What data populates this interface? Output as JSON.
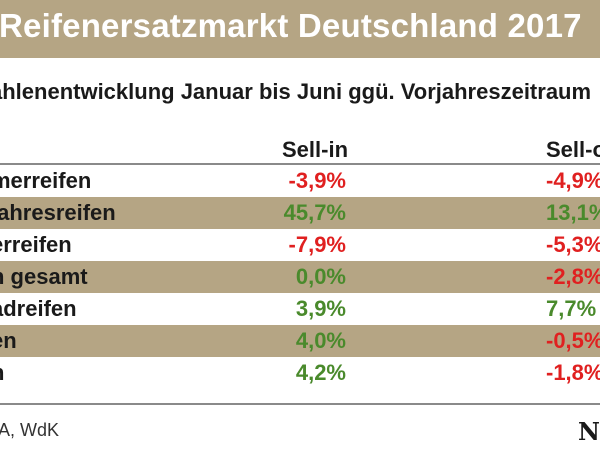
{
  "title": "Reifenersatzmarkt Deutschland 2017",
  "subtitle": "ahlenentwicklung Januar bis Juni ggü. Vorjahreszeitraum",
  "columns": {
    "sellin": "Sell-in",
    "sellout": "Sell-out"
  },
  "rows": [
    {
      "label": "merreifen",
      "sellin": "-3,9%",
      "sellout": "-4,9%"
    },
    {
      "label": "jahresreifen",
      "sellin": "45,7%",
      "sellout": "13,1%"
    },
    {
      "label": "erreifen",
      "sellin": "-7,9%",
      "sellout": "-5,3%"
    },
    {
      "label": "n gesamt",
      "sellin": "0,0%",
      "sellout": "-2,8%"
    },
    {
      "label": "adreifen",
      "sellin": "3,9%",
      "sellout": "7,7%"
    },
    {
      "label": "en",
      "sellin": "4,0%",
      "sellout": "-0,5%"
    },
    {
      "label": "n",
      "sellin": "4,2%",
      "sellout": "-1,8%"
    }
  ],
  "source": "MA, WdK",
  "logo_text": "NR",
  "colors": {
    "band": "#b5a584",
    "negative": "#e02020",
    "positive": "#4a8a2c"
  }
}
